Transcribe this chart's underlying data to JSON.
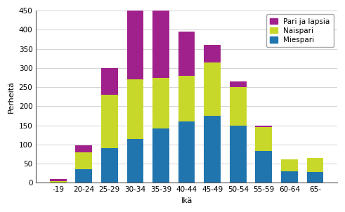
{
  "categories": [
    "-19",
    "20-24",
    "25-29",
    "30-34",
    "35-39",
    "40-44",
    "45-49",
    "50-54",
    "55-59",
    "60-64",
    "65-"
  ],
  "miespari": [
    0,
    35,
    90,
    115,
    143,
    160,
    175,
    150,
    83,
    30,
    28
  ],
  "naispari": [
    5,
    45,
    140,
    155,
    132,
    120,
    140,
    100,
    62,
    32,
    37
  ],
  "pari_ja_lapsia": [
    5,
    18,
    70,
    180,
    175,
    115,
    45,
    15,
    5,
    0,
    0
  ],
  "colors": {
    "miespari": "#2175AE",
    "naispari": "#C8D82A",
    "pari_ja_lapsia": "#A0218C"
  },
  "legend_labels": [
    "Pari ja lapsia",
    "Naispari",
    "Miespari"
  ],
  "ylabel": "Perheitä",
  "xlabel": "Ikä",
  "ylim": [
    0,
    450
  ],
  "yticks": [
    0,
    50,
    100,
    150,
    200,
    250,
    300,
    350,
    400,
    450
  ],
  "figsize": [
    4.91,
    3.02
  ],
  "dpi": 100
}
